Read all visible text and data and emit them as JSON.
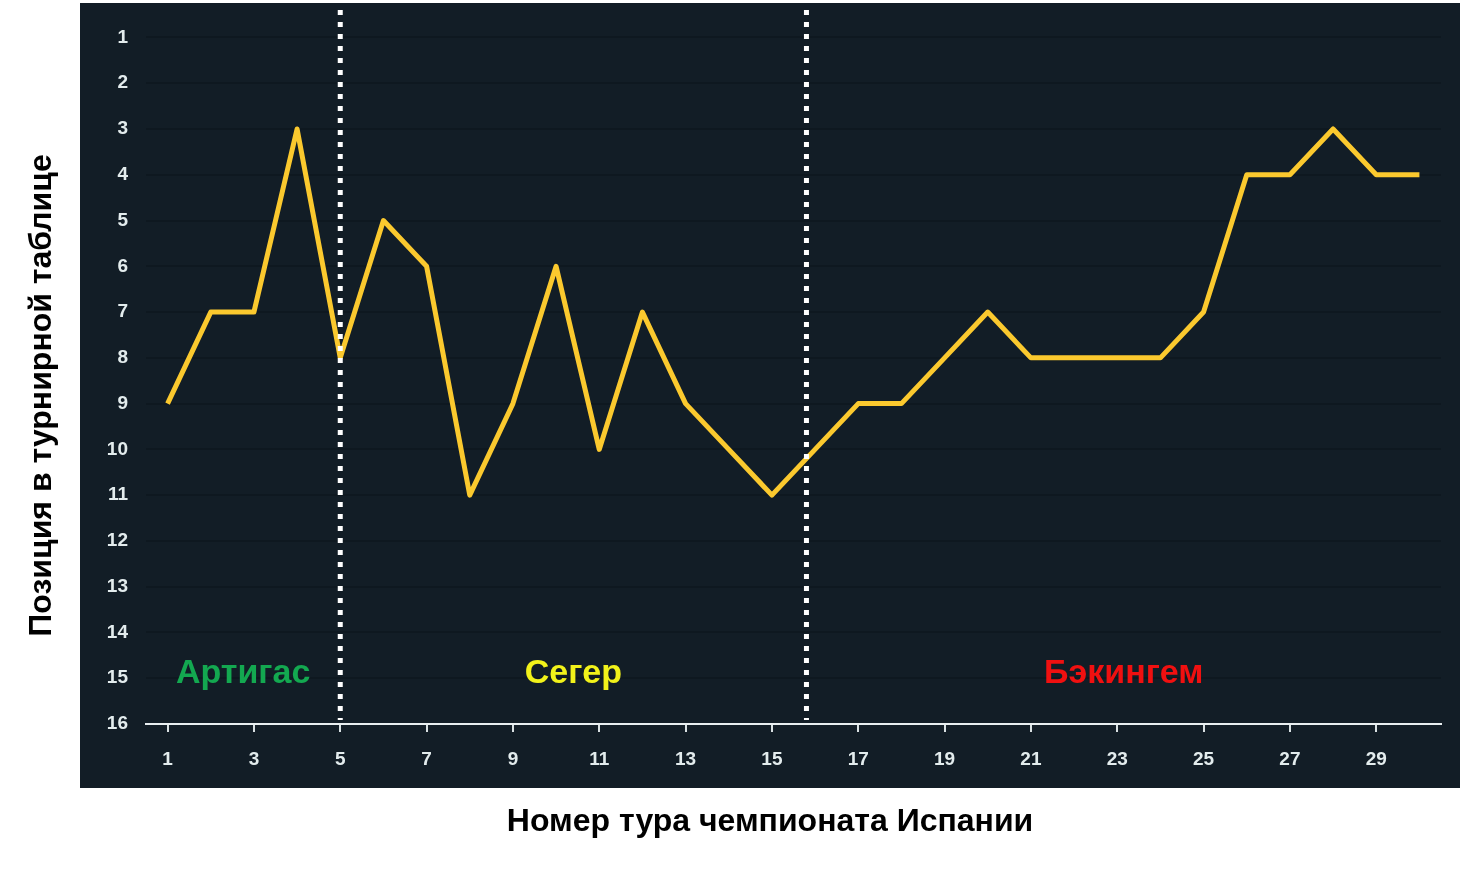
{
  "chart_data": {
    "type": "line",
    "xlabel": "Номер тура чемпионата Испании",
    "ylabel": "Позиция в турнирной таблице",
    "x": [
      1,
      2,
      3,
      4,
      5,
      6,
      7,
      8,
      9,
      10,
      11,
      12,
      13,
      14,
      15,
      16,
      17,
      18,
      19,
      20,
      21,
      22,
      23,
      24,
      25,
      26,
      27,
      28,
      29,
      30
    ],
    "series": [
      {
        "color": "#fbc92e",
        "values": [
          9,
          7,
          7,
          3,
          8,
          5,
          6,
          11,
          9,
          6,
          10,
          7,
          9,
          10,
          11,
          10,
          9,
          9,
          8,
          7,
          8,
          8,
          8,
          8,
          7,
          4,
          4,
          3,
          4,
          4
        ]
      }
    ],
    "xlim": [
      0.5,
      30.5
    ],
    "xticks": [
      1,
      3,
      5,
      7,
      9,
      11,
      13,
      15,
      17,
      19,
      21,
      23,
      25,
      27,
      29
    ],
    "ylim": [
      16,
      0.4
    ],
    "yticks": [
      1,
      2,
      3,
      4,
      5,
      6,
      7,
      8,
      9,
      10,
      11,
      12,
      13,
      14,
      15,
      16
    ],
    "grid": "y",
    "legend": false,
    "marker": "none",
    "line_style": "solid",
    "ref_lines": [
      {
        "axis": "x",
        "value": 5,
        "color": "#ffffff",
        "line_style": "dotted"
      },
      {
        "axis": "x",
        "value": 15.8,
        "color": "#ffffff",
        "line_style": "dotted"
      }
    ],
    "annotations": [
      "Артигас",
      "Сегер",
      "Бэкингем"
    ]
  }
}
